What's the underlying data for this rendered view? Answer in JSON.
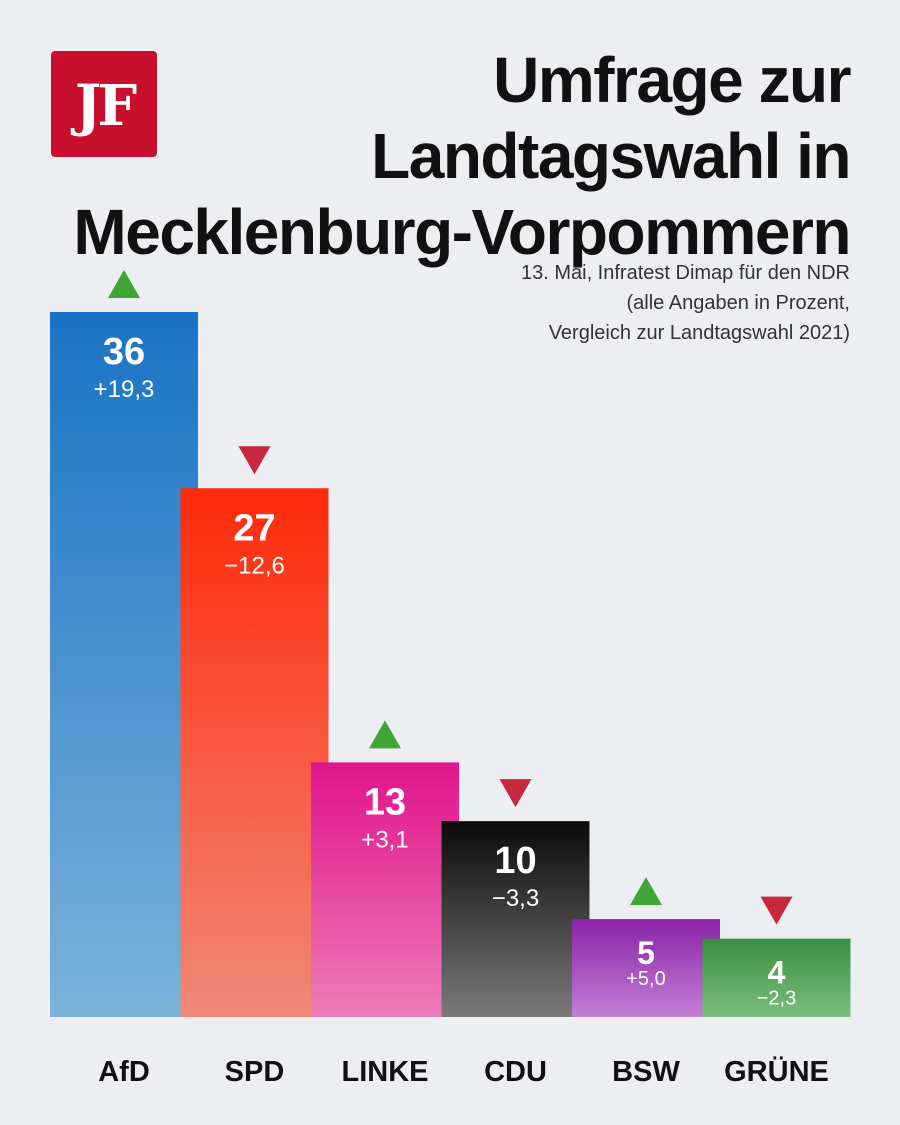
{
  "logo_text": "JF",
  "title_lines": [
    "Umfrage zur",
    "Landtagswahl in",
    "Mecklenburg-Vorpommern"
  ],
  "subtitle_lines": [
    "13. Mai, Infratest Dimap für den NDR",
    "(alle Angaben in Prozent,",
    "Vergleich zur Landtagswahl 2021)"
  ],
  "chart_data": {
    "type": "bar",
    "title": "Umfrage zur Landtagswahl in Mecklenburg-Vorpommern",
    "categories": [
      "AfD",
      "SPD",
      "LINKE",
      "CDU",
      "BSW",
      "GRÜNE"
    ],
    "values": [
      36,
      27,
      13,
      10,
      5,
      4
    ],
    "value_labels": [
      "36",
      "27",
      "13",
      "10",
      "5",
      "4"
    ],
    "change_labels": [
      "+19,3",
      "−12,6",
      "+3,1",
      "−3,3",
      "+5,0",
      "−2,3"
    ],
    "change_direction": [
      "up",
      "down",
      "up",
      "down",
      "up",
      "down"
    ],
    "colors": [
      "#1a73c4",
      "#ff2a0a",
      "#e0138c",
      "#0a0a0a",
      "#8a22a8",
      "#3a8f3e"
    ],
    "colors_light": [
      "#7ab2db",
      "#f08878",
      "#ee7cb8",
      "#7a7a7a",
      "#c27fd6",
      "#7cbe7e"
    ],
    "arrow_colors": {
      "up": "#3fa535",
      "down": "#c8283c"
    },
    "xlabel": "",
    "ylabel": "",
    "ylim": [
      0,
      36
    ],
    "grid": false,
    "legend": "none"
  }
}
